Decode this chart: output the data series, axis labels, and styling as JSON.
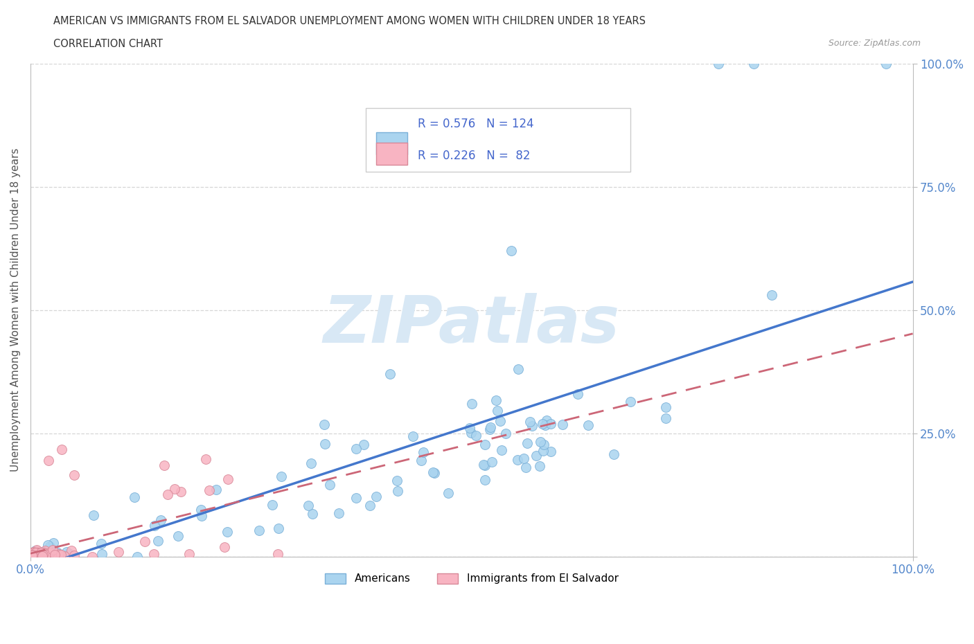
{
  "title_line1": "AMERICAN VS IMMIGRANTS FROM EL SALVADOR UNEMPLOYMENT AMONG WOMEN WITH CHILDREN UNDER 18 YEARS",
  "title_line2": "CORRELATION CHART",
  "source": "Source: ZipAtlas.com",
  "ylabel": "Unemployment Among Women with Children Under 18 years",
  "xlim": [
    0.0,
    1.0
  ],
  "ylim": [
    0.0,
    1.0
  ],
  "ytick_positions": [
    0.0,
    0.25,
    0.5,
    0.75,
    1.0
  ],
  "ytick_labels": [
    "",
    "25.0%",
    "50.0%",
    "75.0%",
    "100.0%"
  ],
  "xtick_positions": [
    0.0,
    1.0
  ],
  "xtick_labels": [
    "0.0%",
    "100.0%"
  ],
  "american_color": "#aad4ef",
  "american_edge": "#7ab0d8",
  "salvador_color": "#f8b4c2",
  "salvador_edge": "#d88898",
  "american_R": 0.576,
  "american_N": 124,
  "salvador_R": 0.226,
  "salvador_N": 82,
  "regression_american_color": "#4477cc",
  "regression_salvador_color": "#cc6677",
  "watermark_text": "ZIPatlas",
  "watermark_color": "#d8e8f5",
  "legend_label_american": "Americans",
  "legend_label_salvador": "Immigrants from El Salvador",
  "background_color": "#ffffff",
  "grid_color": "#cccccc",
  "title_color": "#333333",
  "axis_label_color": "#555555",
  "legend_text_color": "#4466cc",
  "tick_color": "#5588cc",
  "american_seed": 12,
  "salvador_seed": 99
}
